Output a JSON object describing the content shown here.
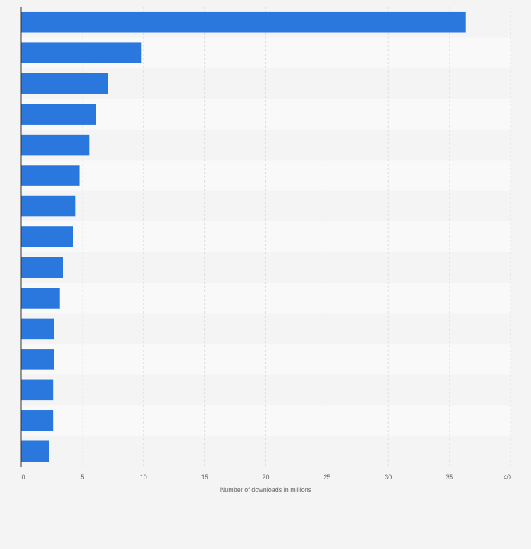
{
  "chart_data": {
    "type": "bar",
    "orientation": "horizontal",
    "title": "",
    "xlabel": "Number of downloads in millions",
    "ylabel": "",
    "xlim": [
      0,
      40
    ],
    "xticks": [
      0,
      5,
      10,
      15,
      20,
      25,
      30,
      35,
      40
    ],
    "grid": true,
    "legend": "none",
    "values": [
      36.3,
      9.8,
      7.1,
      6.1,
      5.6,
      4.75,
      4.45,
      4.25,
      3.4,
      3.15,
      2.7,
      2.7,
      2.6,
      2.6,
      2.3
    ],
    "bar_color": "#2a78de",
    "band_colors": [
      "#f4f4f4",
      "#f9f9f9"
    ],
    "grid_color": "#dddddd",
    "axis_color": "#333333"
  }
}
